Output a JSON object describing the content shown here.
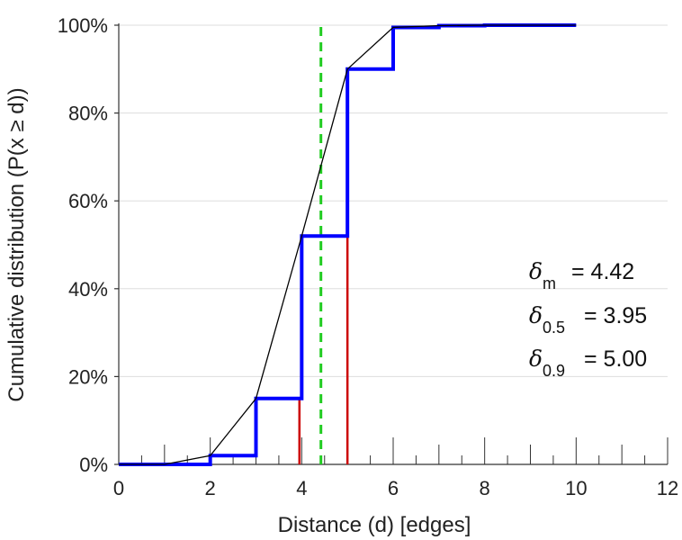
{
  "chart_data": {
    "type": "line",
    "xlabel": "Distance (d) [edges]",
    "ylabel": "Cumulative distribution (P(x ≥ d))",
    "xlim": [
      0,
      12
    ],
    "ylim": [
      0,
      100
    ],
    "x_ticks": [
      0,
      2,
      4,
      6,
      8,
      10,
      12
    ],
    "y_ticks": [
      0,
      20,
      40,
      60,
      80,
      100
    ],
    "y_tick_labels": [
      "0%",
      "20%",
      "40%",
      "60%",
      "80%",
      "100%"
    ],
    "grid": "horizontal",
    "series": [
      {
        "style": "step",
        "color": "#0000ff",
        "x": [
          0,
          1,
          2,
          3,
          4,
          5,
          6,
          7,
          8,
          9,
          10
        ],
        "y": [
          0,
          0,
          2,
          15,
          52,
          90,
          99.5,
          99.9,
          100,
          100,
          100
        ]
      },
      {
        "style": "line",
        "color": "#000000",
        "x": [
          0,
          1,
          2,
          3,
          4,
          5,
          6,
          7,
          8,
          9,
          10
        ],
        "y": [
          0,
          0,
          2,
          15,
          52,
          90,
          99.5,
          99.9,
          100,
          100,
          100
        ]
      }
    ],
    "reference_lines": [
      {
        "x": 3.95,
        "style": "solid",
        "color": "#cc0000"
      },
      {
        "x": 5.0,
        "style": "solid",
        "color": "#cc0000"
      },
      {
        "x": 4.42,
        "style": "dashed",
        "color": "#22cc22"
      }
    ],
    "annotations": [
      {
        "symbol": "δ",
        "subscript": "m",
        "text": "= 4.42"
      },
      {
        "symbol": "δ",
        "subscript": "0.5",
        "text": "= 3.95"
      },
      {
        "symbol": "δ",
        "subscript": "0.9",
        "text": "= 5.00"
      }
    ]
  }
}
